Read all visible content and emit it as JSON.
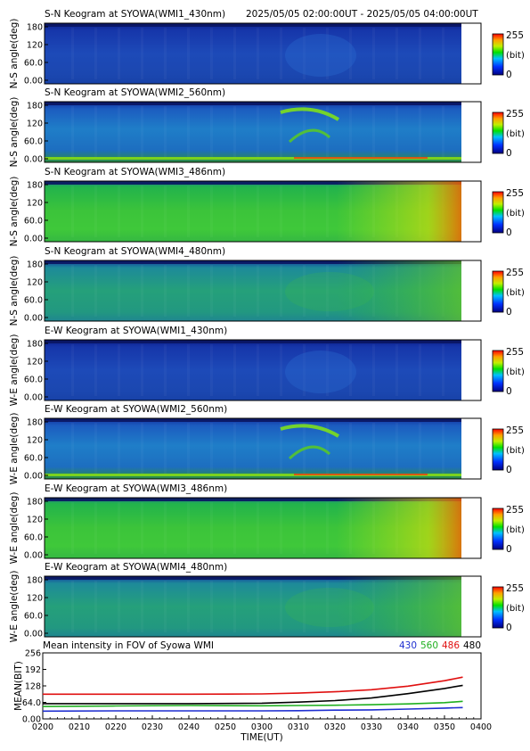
{
  "header": {
    "time_range": "2025/05/05 02:00:00UT - 2025/05/05 04:00:00UT"
  },
  "colors": {
    "keogram_base_dark": "#1a3db5",
    "keogram_mid": "#2e9a2e",
    "keogram_bright": "#5ed018",
    "line_430": "#1f2fd0",
    "line_560": "#20b020",
    "line_486": "#e01010",
    "line_480": "#000000"
  },
  "panels": [
    {
      "title": "S-N Keogram at SYOWA(WMI1_430nm)",
      "ylabel": "N-S angle(deg)",
      "yticks": [
        "180",
        "120",
        "60.0",
        "0.00"
      ],
      "style": "dark"
    },
    {
      "title": "S-N Keogram at SYOWA(WMI2_560nm)",
      "ylabel": "N-S angle(deg)",
      "yticks": [
        "180",
        "120",
        "60.0",
        "0.00"
      ],
      "style": "aurora"
    },
    {
      "title": "S-N Keogram at SYOWA(WMI3_486nm)",
      "ylabel": "N-S angle(deg)",
      "yticks": [
        "180",
        "120",
        "60.0",
        "0.00"
      ],
      "style": "bright"
    },
    {
      "title": "S-N Keogram at SYOWA(WMI4_480nm)",
      "ylabel": "N-S angle(deg)",
      "yticks": [
        "180",
        "120",
        "60.0",
        "0.00"
      ],
      "style": "medium"
    },
    {
      "title": "E-W Keogram at SYOWA(WMI1_430nm)",
      "ylabel": "W-E angle(deg)",
      "yticks": [
        "180",
        "120",
        "60.0",
        "0.00"
      ],
      "style": "dark"
    },
    {
      "title": "E-W Keogram at SYOWA(WMI2_560nm)",
      "ylabel": "W-E angle(deg)",
      "yticks": [
        "180",
        "120",
        "60.0",
        "0.00"
      ],
      "style": "aurora"
    },
    {
      "title": "E-W Keogram at SYOWA(WMI3_486nm)",
      "ylabel": "W-E angle(deg)",
      "yticks": [
        "180",
        "120",
        "60.0",
        "0.00"
      ],
      "style": "bright"
    },
    {
      "title": "E-W Keogram at SYOWA(WMI4_480nm)",
      "ylabel": "W-E angle(deg)",
      "yticks": [
        "180",
        "120",
        "60.0",
        "0.00"
      ],
      "style": "medium"
    }
  ],
  "colorbar": {
    "max": "255",
    "unit": "(bit)",
    "min": "0"
  },
  "chart_data": {
    "type": "line",
    "title": "Mean intensity in FOV of Syowa WMI",
    "xlabel": "TIME(UT)",
    "ylabel": "MEAN(BIT)",
    "x_ticks": [
      "0200",
      "0210",
      "0220",
      "0230",
      "0240",
      "0250",
      "0300",
      "0310",
      "0320",
      "0330",
      "0340",
      "0350",
      "0400"
    ],
    "y_ticks": [
      "256",
      "192",
      "128",
      "64.0",
      "0.00"
    ],
    "ylim": [
      0,
      256
    ],
    "xlim_minutes": [
      0,
      120
    ],
    "legend": [
      "430",
      "560",
      "486",
      "480"
    ],
    "series": [
      {
        "name": "430",
        "color": "#1f2fd0",
        "x": [
          0,
          20,
          40,
          60,
          70,
          80,
          90,
          100,
          110,
          115
        ],
        "y": [
          30,
          31,
          31,
          31,
          32,
          34,
          35,
          38,
          42,
          44
        ]
      },
      {
        "name": "560",
        "color": "#20b020",
        "x": [
          0,
          20,
          40,
          60,
          70,
          80,
          90,
          100,
          110,
          115
        ],
        "y": [
          48,
          50,
          52,
          51,
          52,
          53,
          55,
          58,
          63,
          68
        ]
      },
      {
        "name": "486",
        "color": "#e01010",
        "x": [
          0,
          20,
          40,
          60,
          70,
          80,
          90,
          100,
          110,
          115
        ],
        "y": [
          96,
          96,
          96,
          97,
          100,
          105,
          113,
          127,
          148,
          162
        ]
      },
      {
        "name": "480",
        "color": "#000000",
        "x": [
          0,
          20,
          40,
          60,
          70,
          80,
          90,
          100,
          110,
          115
        ],
        "y": [
          59,
          59,
          59,
          61,
          65,
          71,
          81,
          98,
          118,
          130
        ]
      }
    ]
  }
}
